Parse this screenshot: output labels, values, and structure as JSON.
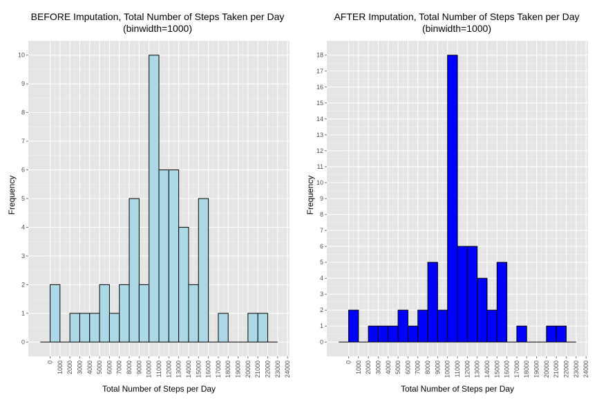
{
  "chart_data": [
    {
      "type": "bar",
      "title": "BEFORE Imputation, Total Number of Steps Taken per Day",
      "subtitle": "(binwidth=1000)",
      "xlabel": "Total Number of Steps per Day",
      "ylabel": "Frequency",
      "xlim": [
        -2200,
        24200
      ],
      "ylim": [
        -0.5,
        10.5
      ],
      "grid": true,
      "x_ticks": [
        "0",
        "1000",
        "2000",
        "3000",
        "4000",
        "5000",
        "6000",
        "7000",
        "8000",
        "9000",
        "10000",
        "11000",
        "12000",
        "13000",
        "14000",
        "15000",
        "16000",
        "17000",
        "18000",
        "19000",
        "20000",
        "21000",
        "22000",
        "23000",
        "24000"
      ],
      "y_ticks": [
        "0",
        "1",
        "2",
        "3",
        "4",
        "5",
        "6",
        "7",
        "8",
        "9",
        "10"
      ],
      "bin_starts": [
        -1000,
        0,
        1000,
        2000,
        3000,
        4000,
        5000,
        6000,
        7000,
        8000,
        9000,
        10000,
        11000,
        12000,
        13000,
        14000,
        15000,
        16000,
        17000,
        18000,
        19000,
        20000,
        21000,
        22000
      ],
      "values": [
        0,
        2,
        0,
        1,
        1,
        1,
        2,
        1,
        2,
        5,
        2,
        10,
        6,
        6,
        4,
        2,
        5,
        0,
        1,
        0,
        0,
        1,
        1,
        0
      ],
      "fill_color": "#add8e6",
      "outline_color": "#000000"
    },
    {
      "type": "bar",
      "title": "AFTER Imputation, Total Number of Steps Taken per Day",
      "subtitle": "(binwidth=1000)",
      "xlabel": "Total Number of Steps per Day",
      "ylabel": "Frequency",
      "xlim": [
        -2200,
        24200
      ],
      "ylim": [
        -0.9,
        18.9
      ],
      "grid": true,
      "x_ticks": [
        "0",
        "1000",
        "2000",
        "3000",
        "4000",
        "5000",
        "6000",
        "7000",
        "8000",
        "9000",
        "10000",
        "11000",
        "12000",
        "13000",
        "14000",
        "15000",
        "16000",
        "17000",
        "18000",
        "19000",
        "20000",
        "21000",
        "22000",
        "23000",
        "24000"
      ],
      "y_ticks": [
        "0",
        "1",
        "2",
        "3",
        "4",
        "5",
        "6",
        "7",
        "8",
        "9",
        "10",
        "11",
        "12",
        "13",
        "14",
        "15",
        "16",
        "17",
        "18"
      ],
      "bin_starts": [
        -1000,
        0,
        1000,
        2000,
        3000,
        4000,
        5000,
        6000,
        7000,
        8000,
        9000,
        10000,
        11000,
        12000,
        13000,
        14000,
        15000,
        16000,
        17000,
        18000,
        19000,
        20000,
        21000,
        22000
      ],
      "values": [
        0,
        2,
        0,
        1,
        1,
        1,
        2,
        1,
        2,
        5,
        2,
        18,
        6,
        6,
        4,
        2,
        5,
        0,
        1,
        0,
        0,
        1,
        1,
        0
      ],
      "fill_color": "#0000ff",
      "outline_color": "#000000"
    }
  ],
  "theme": {
    "panel_background": "#e5e5e5",
    "grid_major": "#ffffff",
    "grid_minor": "#f2f2f2",
    "tick_color": "#4d4d4d"
  }
}
